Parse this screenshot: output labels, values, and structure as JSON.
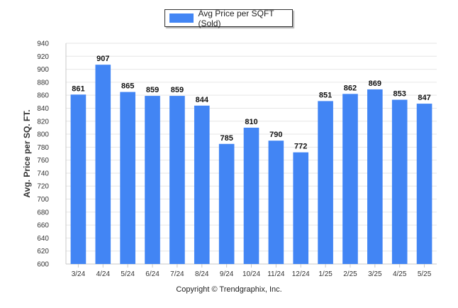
{
  "chart_data": {
    "type": "bar",
    "categories": [
      "3/24",
      "4/24",
      "5/24",
      "6/24",
      "7/24",
      "8/24",
      "9/24",
      "10/24",
      "11/24",
      "12/24",
      "1/25",
      "2/25",
      "3/25",
      "4/25",
      "5/25"
    ],
    "series": [
      {
        "name": "Avg Price per SQFT (Sold)",
        "values": [
          861,
          907,
          865,
          859,
          859,
          844,
          785,
          810,
          790,
          772,
          851,
          862,
          869,
          853,
          847
        ]
      }
    ],
    "ylabel": "Avg. Price per SQ. FT.",
    "xlabel": "",
    "ylim": [
      600,
      940
    ],
    "ytick_step": 20,
    "grid": true,
    "legend_position": "top-center",
    "bar_color": "#4285f4",
    "data_labels": true
  },
  "footer": {
    "copyright": "Copyright © Trendgraphix, Inc."
  }
}
